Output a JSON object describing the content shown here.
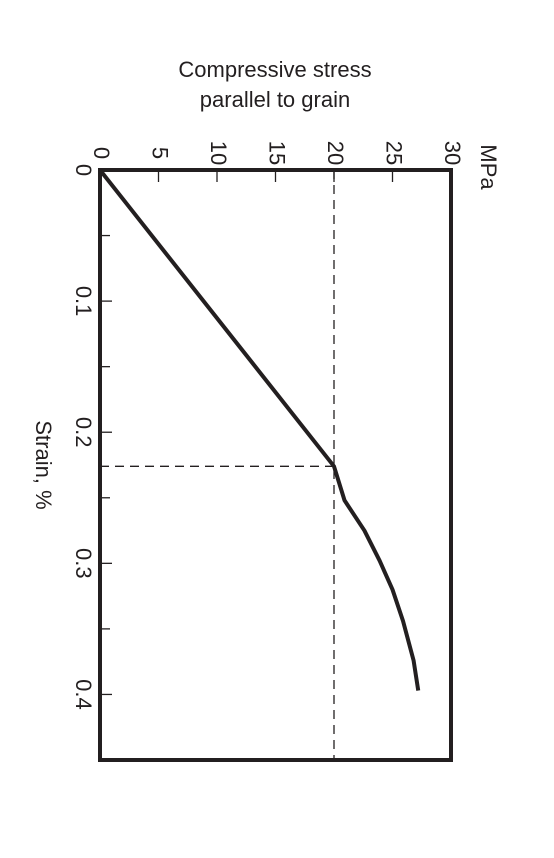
{
  "chart_data": {
    "type": "line",
    "title": [
      "Compressive stress",
      "parallel to grain"
    ],
    "y_unit": "MPa",
    "x_label": "Strain, %",
    "x": [
      0,
      0.226,
      0.252,
      0.275,
      0.298,
      0.32,
      0.344,
      0.374,
      0.397
    ],
    "series": [
      {
        "color": "#231f20",
        "values": [
          0,
          20,
          20.9,
          22.6,
          23.9,
          25.0,
          25.9,
          26.8,
          27.2
        ]
      }
    ],
    "xlim": [
      0,
      0.45
    ],
    "xticks": [
      0,
      0.1,
      0.2,
      0.3,
      0.4
    ],
    "xminorticks": [
      0.05,
      0.15,
      0.25,
      0.35
    ],
    "ylim": [
      0,
      30
    ],
    "yticks": [
      0,
      5,
      10,
      15,
      20,
      25,
      30
    ],
    "reference_stress": 20,
    "reference_strain": 0.226
  }
}
